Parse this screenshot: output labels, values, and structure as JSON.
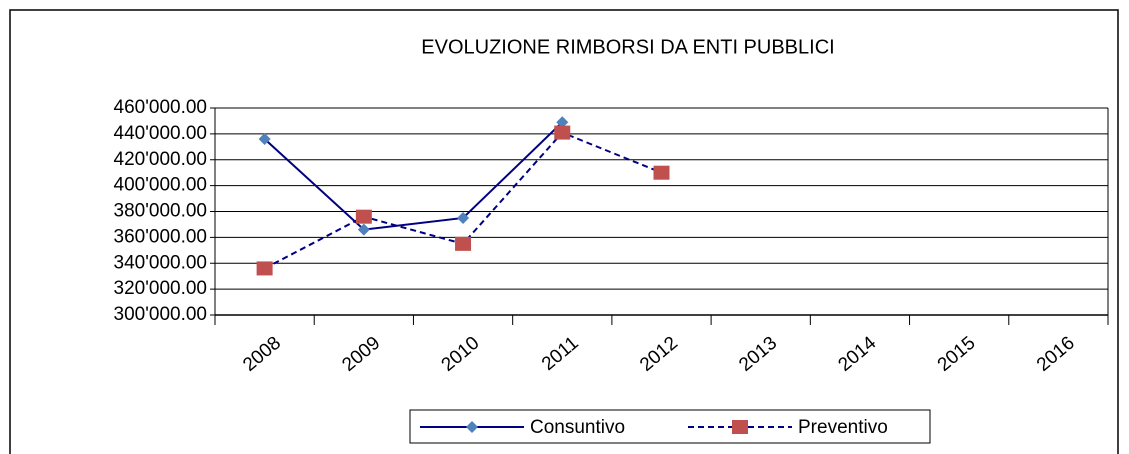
{
  "chart_data": {
    "type": "line",
    "title": "EVOLUZIONE RIMBORSI DA ENTI PUBBLICI",
    "categories": [
      "2008",
      "2009",
      "2010",
      "2011",
      "2012",
      "2013",
      "2014",
      "2015",
      "2016"
    ],
    "series": [
      {
        "name": "Consuntivo",
        "color": "#000080",
        "marker_color": "#4f81bd",
        "marker": "diamond",
        "line_style": "solid",
        "values": [
          436000,
          366000,
          375000,
          449000,
          null,
          null,
          null,
          null,
          null
        ]
      },
      {
        "name": "Preventivo",
        "color": "#000080",
        "marker_color": "#c0504d",
        "marker": "square",
        "line_style": "dashed",
        "values": [
          336000,
          376000,
          355000,
          441000,
          410000,
          null,
          null,
          null,
          null
        ]
      }
    ],
    "ylim": [
      300000,
      460000
    ],
    "yticks": [
      {
        "value": 300000,
        "label": "300'000.00"
      },
      {
        "value": 320000,
        "label": "320'000.00"
      },
      {
        "value": 340000,
        "label": "340'000.00"
      },
      {
        "value": 360000,
        "label": "360'000.00"
      },
      {
        "value": 380000,
        "label": "380'000.00"
      },
      {
        "value": 400000,
        "label": "400'000.00"
      },
      {
        "value": 420000,
        "label": "420'000.00"
      },
      {
        "value": 440000,
        "label": "440'000.00"
      },
      {
        "value": 460000,
        "label": "460'000.00"
      }
    ],
    "grid": true,
    "legend": "bottom"
  }
}
